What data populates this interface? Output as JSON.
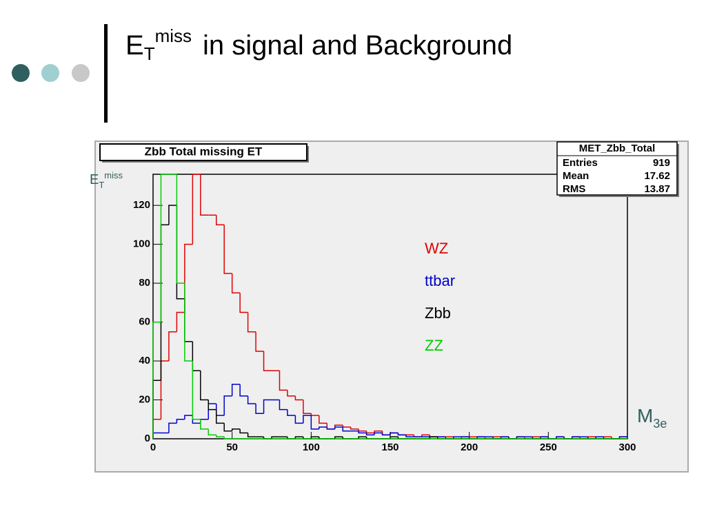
{
  "slide_title": {
    "base": "E",
    "sub": "T",
    "sup": "miss",
    "rest": "in signal and Background"
  },
  "chart_data": {
    "type": "histogram",
    "title": "Zbb Total missing ET",
    "stats": {
      "name": "MET_Zbb_Total",
      "rows": [
        [
          "Entries",
          "919"
        ],
        [
          "Mean",
          "17.62"
        ],
        [
          "RMS",
          "13.87"
        ]
      ]
    },
    "y_label": {
      "base": "E",
      "sub": "T",
      "sup": "miss"
    },
    "x_label": {
      "base": "M",
      "sub": "3e"
    },
    "xlim": [
      0,
      300
    ],
    "ylim": [
      0,
      136
    ],
    "xticks": [
      0,
      50,
      100,
      150,
      200,
      250,
      300
    ],
    "yticks": [
      0,
      20,
      40,
      60,
      80,
      100,
      120
    ],
    "bins": [
      0,
      5,
      10,
      15,
      20,
      25,
      30,
      35,
      40,
      45,
      50,
      55,
      60,
      65,
      70,
      75,
      80,
      85,
      90,
      95,
      100,
      105,
      110,
      115,
      120,
      125,
      130,
      135,
      140,
      145,
      150,
      155,
      160,
      165,
      170,
      175,
      180,
      185,
      190,
      195,
      200,
      205,
      210,
      215,
      220,
      225,
      230,
      235,
      240,
      245,
      250,
      255,
      260,
      265,
      270,
      275,
      280,
      285,
      290,
      295,
      300
    ],
    "series": [
      {
        "name": "WZ",
        "color": "#e00000",
        "values": [
          10,
          40,
          55,
          65,
          100,
          136,
          115,
          115,
          110,
          85,
          75,
          65,
          55,
          45,
          35,
          35,
          25,
          22,
          20,
          13,
          12,
          8,
          5,
          7,
          6,
          5,
          4,
          3,
          4,
          2,
          3,
          2,
          2,
          1,
          2,
          1,
          1,
          1,
          0,
          1,
          1,
          1,
          0,
          1,
          1,
          0,
          1,
          0,
          1,
          1,
          0,
          1,
          0,
          1,
          0,
          1,
          0,
          1,
          0,
          1
        ]
      },
      {
        "name": "ttbar",
        "color": "#0000cc",
        "values": [
          3,
          3,
          8,
          10,
          12,
          8,
          10,
          18,
          12,
          22,
          28,
          22,
          18,
          13,
          20,
          20,
          15,
          12,
          8,
          12,
          5,
          6,
          5,
          6,
          4,
          4,
          3,
          2,
          3,
          2,
          3,
          2,
          1,
          1,
          1,
          1,
          1,
          0,
          1,
          1,
          0,
          1,
          1,
          0,
          1,
          0,
          1,
          1,
          0,
          1,
          0,
          1,
          0,
          1,
          1,
          0,
          1,
          0,
          0,
          1
        ]
      },
      {
        "name": "Zbb",
        "color": "#000000",
        "values": [
          30,
          110,
          120,
          72,
          50,
          35,
          20,
          15,
          8,
          4,
          5,
          3,
          1,
          1,
          0,
          1,
          1,
          0,
          1,
          0,
          1,
          0,
          0,
          1,
          0,
          0,
          1,
          0,
          0,
          0,
          1,
          0,
          0,
          0,
          0,
          1,
          0,
          0,
          0,
          0,
          0,
          0,
          0,
          0,
          0,
          0,
          0,
          0,
          0,
          0,
          0,
          0,
          0,
          0,
          0,
          0,
          0,
          0,
          0,
          0
        ]
      },
      {
        "name": "ZZ",
        "color": "#00cc00",
        "values": [
          60,
          136,
          136,
          80,
          40,
          10,
          5,
          2,
          1,
          0,
          0,
          0,
          0,
          0,
          0,
          0,
          0,
          0,
          0,
          0,
          0,
          0,
          0,
          0,
          0,
          0,
          0,
          0,
          0,
          0,
          0,
          0,
          0,
          0,
          0,
          0,
          0,
          0,
          0,
          0,
          0,
          0,
          0,
          0,
          0,
          0,
          0,
          0,
          0,
          0,
          0,
          0,
          0,
          0,
          0,
          0,
          0,
          0,
          0,
          0
        ]
      }
    ]
  }
}
